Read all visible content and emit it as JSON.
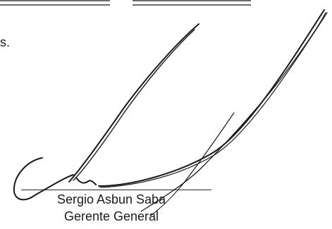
{
  "fragment_text": "s.",
  "signatory": {
    "name": "Sergio Asbun Saba",
    "title": "Gerente General"
  },
  "colors": {
    "ink": "#1a1a1a",
    "rule": "#6b6b6b"
  }
}
